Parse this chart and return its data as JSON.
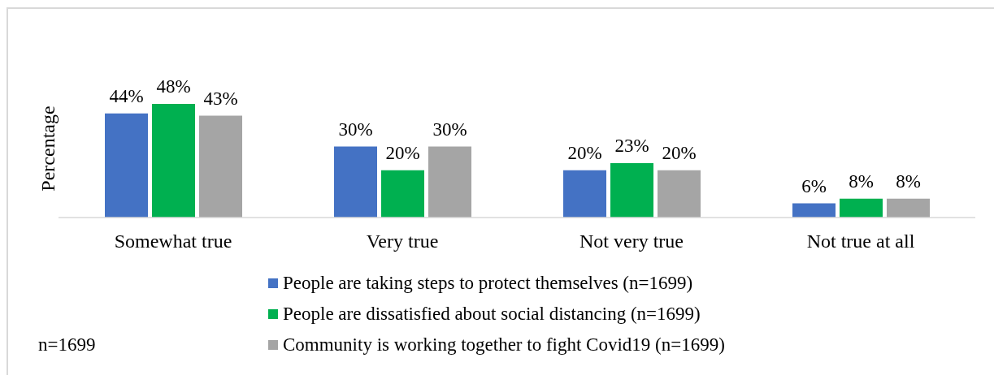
{
  "chart_data": {
    "type": "bar",
    "ylabel": "Percentage",
    "categories": [
      "Somewhat true",
      "Very true",
      "Not very true",
      "Not true at all"
    ],
    "series": [
      {
        "name": "People are taking steps to protect themselves (n=1699)",
        "color": "#4472c4",
        "values": [
          44,
          30,
          20,
          6
        ],
        "value_labels": [
          "44%",
          "30%",
          "20%",
          "6%"
        ]
      },
      {
        "name": "People are dissatisfied about social distancing (n=1699)",
        "color": "#00b050",
        "values": [
          48,
          20,
          23,
          8
        ],
        "value_labels": [
          "48%",
          "20%",
          "23%",
          "8%"
        ]
      },
      {
        "name": "Community is working together to fight Covid19 (n=1699)",
        "color": "#a5a5a5",
        "values": [
          43,
          30,
          20,
          8
        ],
        "value_labels": [
          "43%",
          "30%",
          "20%",
          "8%"
        ]
      }
    ],
    "legend": "bottom",
    "annotations": [
      "n=1699"
    ]
  }
}
